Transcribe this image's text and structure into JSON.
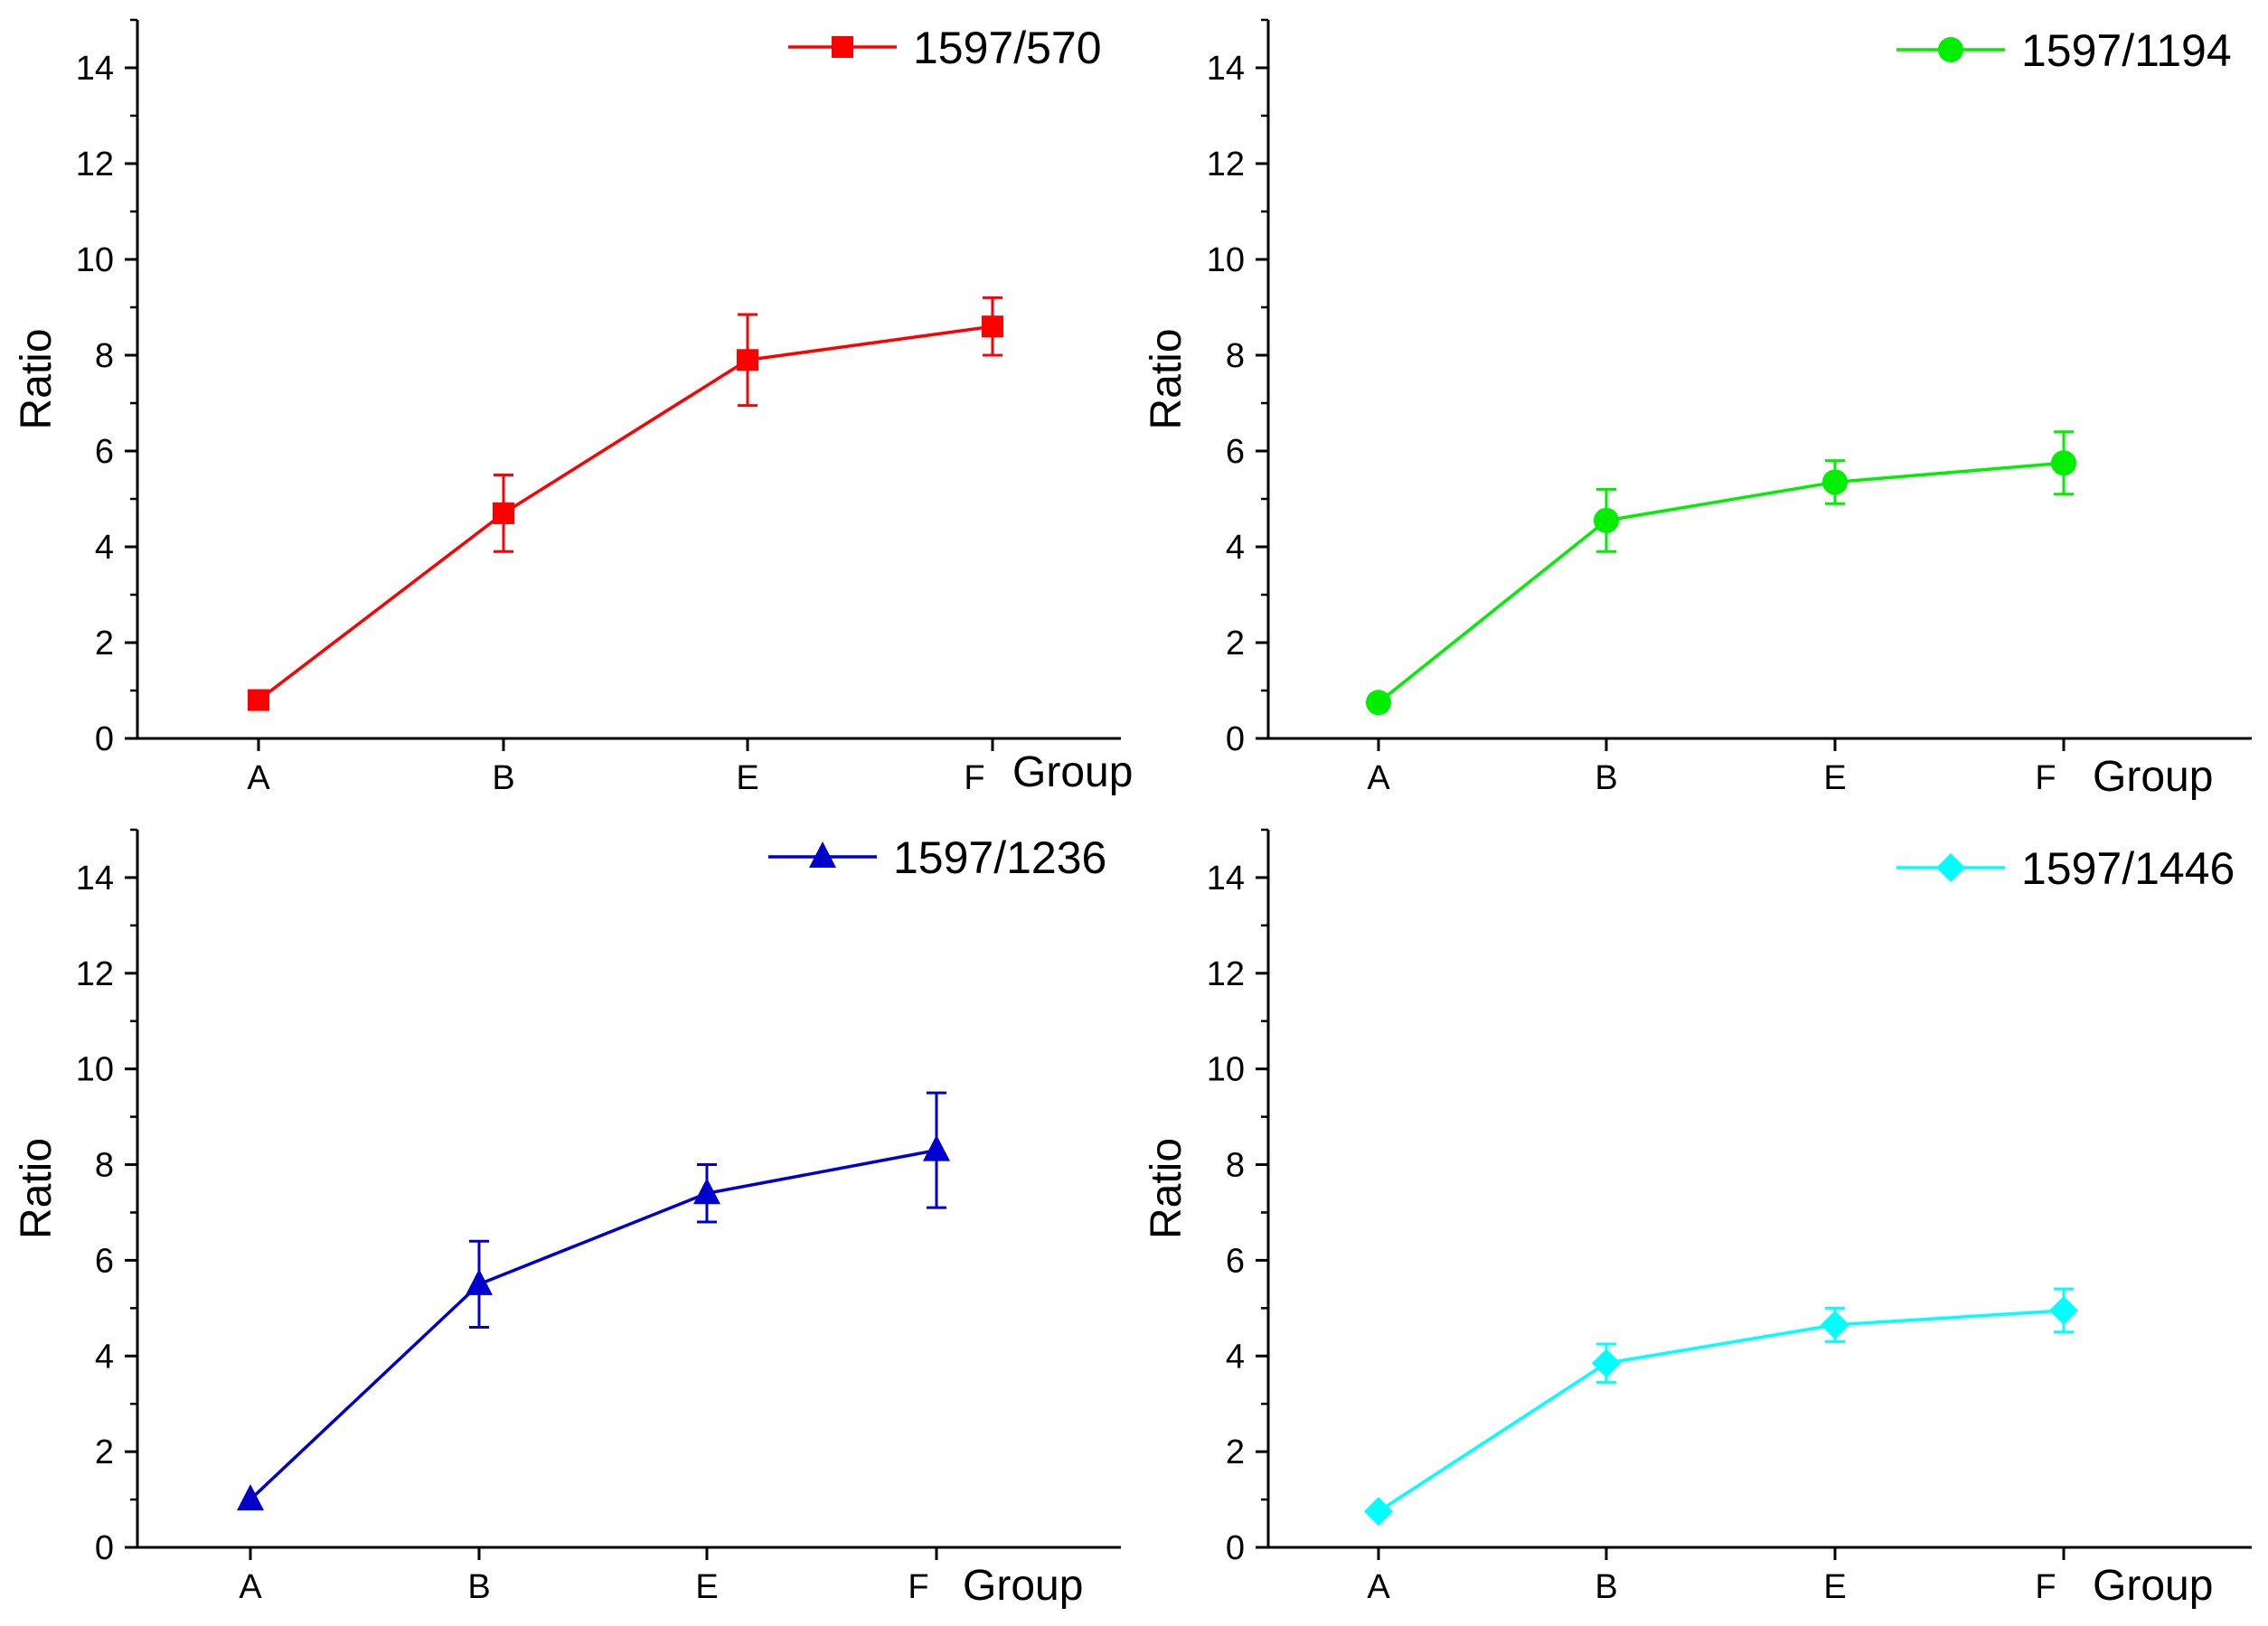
{
  "chart_data": [
    {
      "type": "line",
      "xlabel": "Group",
      "ylabel": "Ratio",
      "categories": [
        "A",
        "B",
        "E",
        "F"
      ],
      "ylim": [
        0,
        15
      ],
      "yticks": [
        0,
        2,
        4,
        6,
        8,
        10,
        12,
        14
      ],
      "series": [
        {
          "name": "1597/570",
          "color": "#ff0000",
          "marker": "square",
          "values": [
            0.8,
            4.7,
            7.9,
            8.6
          ],
          "errors": [
            0.0,
            0.8,
            0.95,
            0.6
          ]
        }
      ],
      "legend": "top-right"
    },
    {
      "type": "line",
      "xlabel": "Group",
      "ylabel": "Ratio",
      "categories": [
        "A",
        "B",
        "E",
        "F"
      ],
      "ylim": [
        0,
        15
      ],
      "yticks": [
        0,
        2,
        4,
        6,
        8,
        10,
        12,
        14
      ],
      "series": [
        {
          "name": "1597/1194",
          "color": "#00ee00",
          "marker": "circle",
          "values": [
            0.75,
            4.55,
            5.35,
            5.75
          ],
          "errors": [
            0.0,
            0.65,
            0.45,
            0.65
          ]
        }
      ],
      "legend": "top-right"
    },
    {
      "type": "line",
      "xlabel": "Group",
      "ylabel": "Ratio",
      "categories": [
        "A",
        "B",
        "E",
        "F"
      ],
      "ylim": [
        0,
        15
      ],
      "yticks": [
        0,
        2,
        4,
        6,
        8,
        10,
        12,
        14
      ],
      "series": [
        {
          "name": "1597/1236",
          "color": "#0000cc",
          "marker": "triangle",
          "values": [
            1.0,
            5.5,
            7.4,
            8.3
          ],
          "errors": [
            0.0,
            0.9,
            0.6,
            1.2
          ]
        }
      ],
      "legend": "top-right"
    },
    {
      "type": "line",
      "xlabel": "Group",
      "ylabel": "Ratio",
      "categories": [
        "A",
        "B",
        "E",
        "F"
      ],
      "ylim": [
        0,
        15
      ],
      "yticks": [
        0,
        2,
        4,
        6,
        8,
        10,
        12,
        14
      ],
      "series": [
        {
          "name": "1597/1446",
          "color": "#00ffff",
          "marker": "diamond",
          "values": [
            0.75,
            3.85,
            4.65,
            4.95
          ],
          "errors": [
            0.0,
            0.4,
            0.35,
            0.45
          ]
        }
      ],
      "legend": "top-right"
    }
  ]
}
